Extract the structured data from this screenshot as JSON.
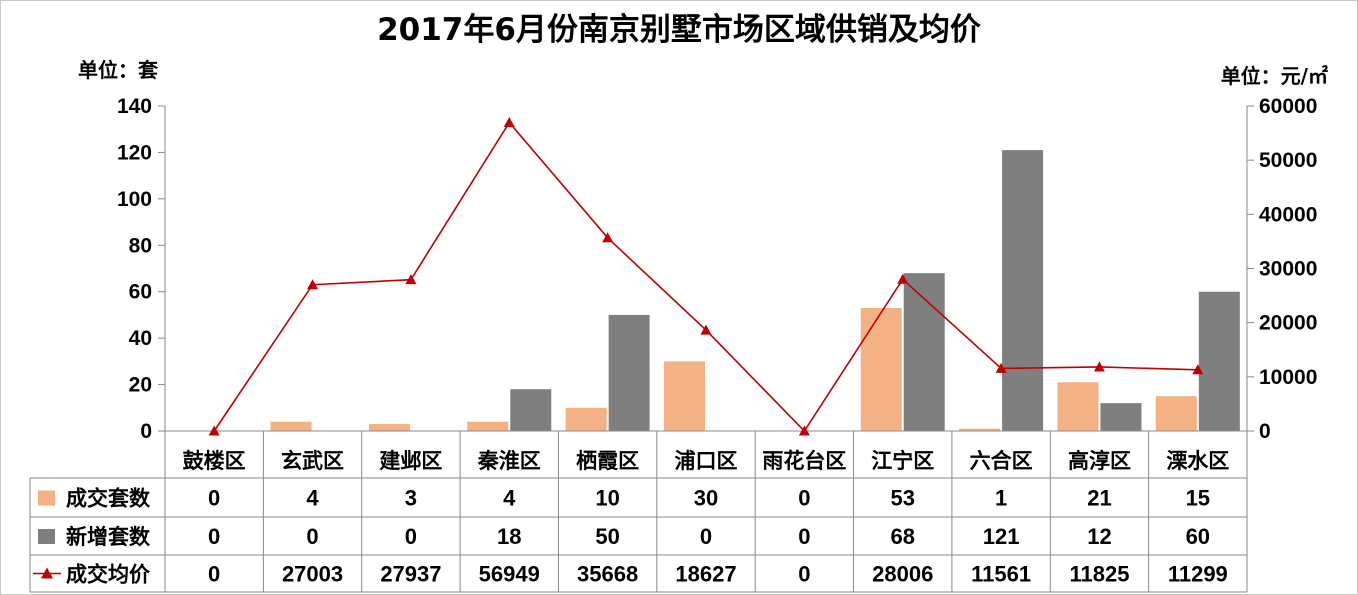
{
  "chart_data": {
    "type": "bar",
    "title": "2017年6月份南京别墅市场区域供销及均价",
    "y_left_unit": "单位：套",
    "y_right_unit": "单位：元/㎡",
    "ylim_left": [
      0,
      140
    ],
    "yticks_left": [
      0,
      20,
      40,
      60,
      80,
      100,
      120,
      140
    ],
    "ylim_right": [
      0,
      60000
    ],
    "yticks_right": [
      0,
      10000,
      20000,
      30000,
      40000,
      50000,
      60000
    ],
    "grid": false,
    "legend": "data-table",
    "categories": [
      "鼓楼区",
      "玄武区",
      "建邺区",
      "秦淮区",
      "栖霞区",
      "浦口区",
      "雨花台区",
      "江宁区",
      "六合区",
      "高淳区",
      "溧水区"
    ],
    "series": [
      {
        "name": "成交套数",
        "type": "bar",
        "axis": "left",
        "color": "#f4b183",
        "values": [
          0,
          4,
          3,
          4,
          10,
          30,
          0,
          53,
          1,
          21,
          15
        ]
      },
      {
        "name": "新增套数",
        "type": "bar",
        "axis": "left",
        "color": "#7f7f7f",
        "values": [
          0,
          0,
          0,
          18,
          50,
          0,
          0,
          68,
          121,
          12,
          60
        ]
      },
      {
        "name": "成交均价",
        "type": "line",
        "axis": "right",
        "color": "#c00000",
        "marker": "triangle",
        "values": [
          0,
          27003,
          27937,
          56949,
          35668,
          18627,
          0,
          28006,
          11561,
          11825,
          11299
        ]
      }
    ]
  }
}
